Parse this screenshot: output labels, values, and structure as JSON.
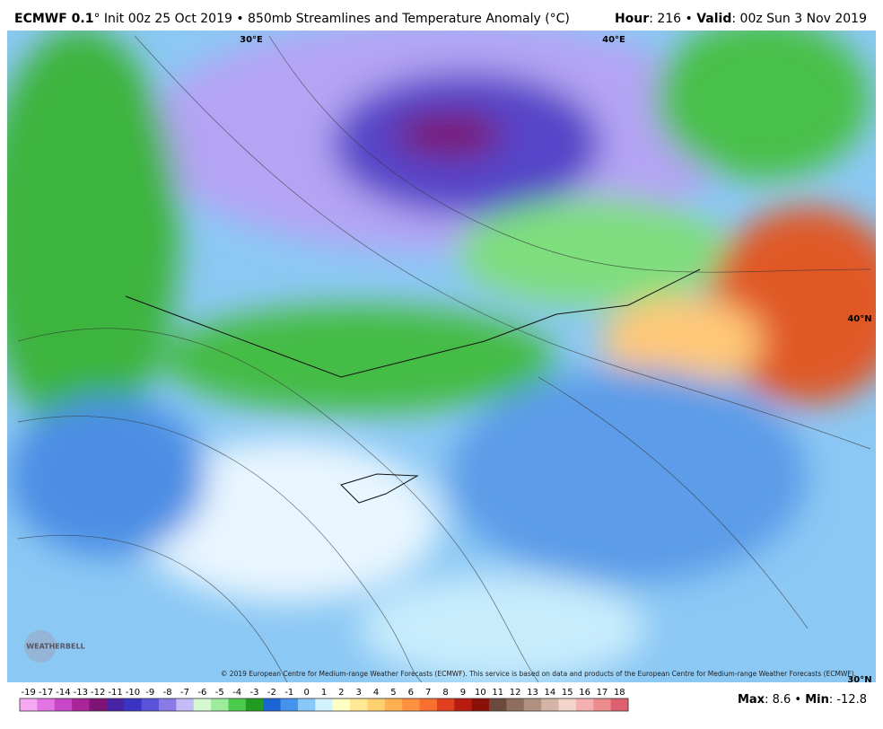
{
  "header": {
    "left": [
      {
        "text": "ECMWF 0.1",
        "bold": true
      },
      {
        "text": "° Init 00z 25 Oct 2019 • 850mb Streamlines and Temperature Anomaly (°C)",
        "bold": false
      }
    ],
    "right": [
      {
        "text": "Hour",
        "bold": true
      },
      {
        "text": ": 216 • ",
        "bold": false
      },
      {
        "text": "Valid",
        "bold": true
      },
      {
        "text": ": 00z Sun 3 Nov 2019",
        "bold": false
      }
    ]
  },
  "map": {
    "labels": {
      "lon30": "30°E",
      "lon40": "40°E",
      "lat40": "40°N",
      "lat30": "30°N"
    },
    "logo": "WEATHERBELL",
    "copyright": "© 2019 European Centre for Medium-range Weather Forecasts (ECMWF). This service is based on data and products of the European Centre for Medium-range Weather Forecasts (ECMWF)."
  },
  "colorbar": {
    "labels": [
      -19,
      -17,
      -14,
      -13,
      -12,
      -11,
      -10,
      -9,
      -8,
      -7,
      -6,
      -5,
      -4,
      -3,
      -2,
      -1,
      0,
      1,
      2,
      3,
      4,
      5,
      6,
      7,
      8,
      9,
      10,
      11,
      12,
      13,
      14,
      15,
      16,
      17,
      18
    ],
    "colors": [
      "#f6a8f2",
      "#e274e4",
      "#c846c8",
      "#a82498",
      "#7e1474",
      "#4a22a4",
      "#3a34c4",
      "#5a52d8",
      "#8a7ae6",
      "#c4bcf6",
      "#d6f8d0",
      "#9cec9c",
      "#4ccc4c",
      "#209c20",
      "#1c64d4",
      "#4494ee",
      "#88c8f8",
      "#d2f2ff",
      "#ffffc4",
      "#ffe894",
      "#ffd070",
      "#ffb050",
      "#ff9040",
      "#f87030",
      "#e04020",
      "#b81c10",
      "#8a1008",
      "#6e4a3c",
      "#8e6e5e",
      "#b0907e",
      "#d4b4a4",
      "#f2d6cc",
      "#f6b0b0",
      "#ec8c8c",
      "#dc6070"
    ]
  },
  "footer": [
    {
      "text": "Max",
      "bold": true
    },
    {
      "text": ": 8.6 • ",
      "bold": false
    },
    {
      "text": "Min",
      "bold": true
    },
    {
      "text": ": -12.8",
      "bold": false
    }
  ]
}
